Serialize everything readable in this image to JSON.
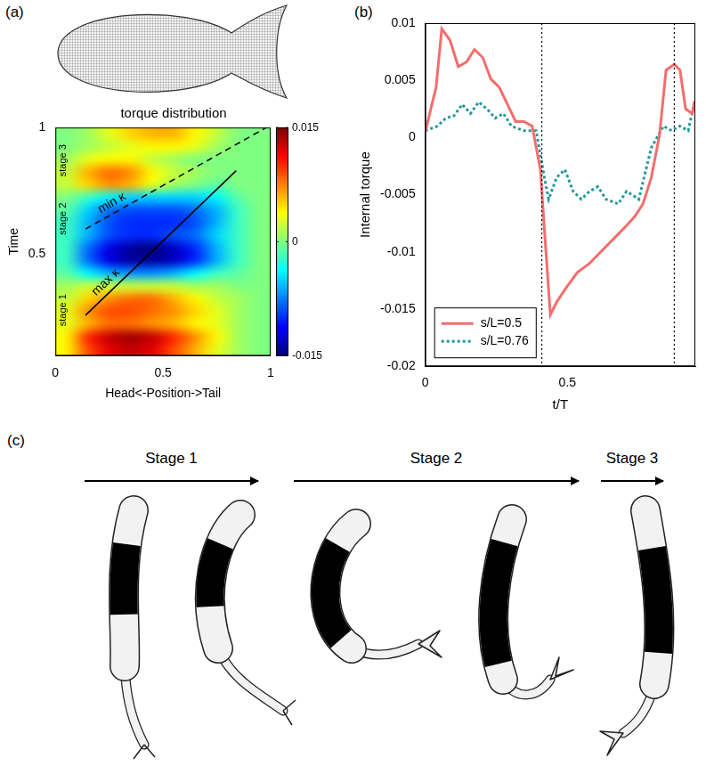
{
  "panel_labels": [
    "(a)",
    "(b)",
    "(c)"
  ],
  "chart_data": [
    {
      "type": "heatmap",
      "title": "torque distribution",
      "x_label": "Head<-Position->Tail",
      "y_label": "Time",
      "x": [
        0.05,
        0.15,
        0.25,
        0.35,
        0.45,
        0.55,
        0.65,
        0.75,
        0.85,
        0.95
      ],
      "y": [
        0.125,
        0.175,
        0.225,
        0.275,
        0.325,
        0.375,
        0.425,
        0.475,
        0.525,
        0.575,
        0.625,
        0.675,
        0.725,
        0.775,
        0.825,
        0.875,
        0.925,
        0.975
      ],
      "cells": [
        [
          0.004,
          0.009,
          0.012,
          0.013,
          0.012,
          0.009,
          0.006,
          0.003,
          0.001,
          0
        ],
        [
          0.004,
          0.01,
          0.013,
          0.014,
          0.013,
          0.01,
          0.007,
          0.004,
          0.001,
          0
        ],
        [
          0.003,
          0.006,
          0.008,
          0.008,
          0.007,
          0.006,
          0.004,
          0.003,
          0.001,
          0
        ],
        [
          0.003,
          0.007,
          0.009,
          0.009,
          0.008,
          0.007,
          0.005,
          0.003,
          0.001,
          0
        ],
        [
          0.002,
          0.005,
          0.007,
          0.008,
          0.008,
          0.006,
          0.004,
          0.002,
          0.001,
          0
        ],
        [
          0.001,
          0.002,
          0.002,
          0.002,
          0.002,
          0.002,
          0.001,
          0.001,
          0,
          0
        ],
        [
          -0.001,
          -0.004,
          -0.006,
          -0.007,
          -0.007,
          -0.006,
          -0.004,
          -0.002,
          -0.001,
          0
        ],
        [
          -0.002,
          -0.008,
          -0.012,
          -0.014,
          -0.014,
          -0.013,
          -0.01,
          -0.006,
          -0.002,
          0
        ],
        [
          -0.002,
          -0.008,
          -0.012,
          -0.014,
          -0.015,
          -0.013,
          -0.01,
          -0.006,
          -0.002,
          0
        ],
        [
          -0.002,
          -0.006,
          -0.009,
          -0.01,
          -0.01,
          -0.009,
          -0.008,
          -0.005,
          -0.002,
          0
        ],
        [
          -0.002,
          -0.006,
          -0.009,
          -0.01,
          -0.01,
          -0.01,
          -0.009,
          -0.006,
          -0.002,
          0
        ],
        [
          -0.001,
          -0.005,
          -0.008,
          -0.009,
          -0.009,
          -0.009,
          -0.008,
          -0.006,
          -0.002,
          0
        ],
        [
          0,
          -0.002,
          -0.004,
          -0.005,
          -0.005,
          -0.005,
          -0.005,
          -0.004,
          -0.001,
          0
        ],
        [
          0.002,
          0.005,
          0.007,
          0.006,
          0.003,
          0.001,
          0,
          -0.001,
          0,
          0
        ],
        [
          0.002,
          0.006,
          0.008,
          0.007,
          0.004,
          0.002,
          0.001,
          0,
          0,
          0
        ],
        [
          0.001,
          0.003,
          0.004,
          0.004,
          0.002,
          0.001,
          0,
          0,
          0,
          0
        ],
        [
          0,
          0.001,
          0.002,
          0.003,
          0.004,
          0.004,
          0.003,
          0.001,
          0,
          0
        ],
        [
          0,
          0.001,
          0.003,
          0.005,
          0.006,
          0.006,
          0.004,
          0.002,
          0,
          0
        ]
      ],
      "xlim": [
        0,
        1
      ],
      "xticks": [
        0,
        0.5,
        1
      ],
      "ylim": [
        0.1,
        1
      ],
      "yticks": [
        0.5,
        1
      ],
      "grid": false,
      "colorbar": {
        "range": [
          -0.015,
          0.015
        ],
        "ticks": [
          0.015,
          0,
          -0.015
        ]
      },
      "annotations": [
        {
          "text": "max κ",
          "line": [
            [
              0.14,
              0.26
            ],
            [
              0.84,
              0.83
            ]
          ],
          "line_style": "solid"
        },
        {
          "text": "min κ",
          "line": [
            [
              0.14,
              0.6
            ],
            [
              0.98,
              1.0
            ]
          ],
          "line_style": "dashed"
        }
      ],
      "stage_labels": [
        {
          "text": "stage 1",
          "y": 0.28
        },
        {
          "text": "stage 2",
          "y": 0.64
        },
        {
          "text": "stage 3",
          "y": 0.87
        }
      ]
    },
    {
      "type": "line",
      "x_label": "t/T",
      "y_label": "Internal torque",
      "xlim": [
        0,
        0.95
      ],
      "xticks": [
        0,
        0.5
      ],
      "ylim": [
        -0.02,
        0.01
      ],
      "yticks": [
        -0.02,
        -0.015,
        -0.01,
        -0.005,
        0,
        0.005,
        0.01
      ],
      "grid": false,
      "legend": "lower left",
      "vertical_lines": [
        0.41,
        0.876
      ],
      "series": [
        {
          "name": "s/L=0.5",
          "color": "#f46d6d",
          "line_style": "solid",
          "x": [
            0,
            0.038,
            0.058,
            0.087,
            0.116,
            0.145,
            0.173,
            0.202,
            0.231,
            0.26,
            0.289,
            0.318,
            0.347,
            0.376,
            0.405,
            0.419,
            0.44,
            0.462,
            0.491,
            0.535,
            0.578,
            0.621,
            0.665,
            0.708,
            0.737,
            0.766,
            0.795,
            0.824,
            0.847,
            0.876,
            0.896,
            0.916,
            0.939,
            0.948
          ],
          "values": [
            0.0005,
            0.0044,
            0.0095,
            0.0085,
            0.0062,
            0.0066,
            0.0077,
            0.007,
            0.0051,
            0.0044,
            0.0029,
            0.0014,
            0.0014,
            0.001,
            -0.0028,
            -0.008,
            -0.0155,
            -0.0144,
            -0.0133,
            -0.0118,
            -0.011,
            -0.0099,
            -0.0088,
            -0.0077,
            -0.0069,
            -0.0058,
            -0.0035,
            0.0002,
            0.0059,
            0.0064,
            0.0059,
            0.0025,
            0.0021,
            0.0032
          ]
        },
        {
          "name": "s/L=0.76",
          "color": "#20979b",
          "line_style": "dotted",
          "x": [
            0,
            0.043,
            0.072,
            0.101,
            0.13,
            0.159,
            0.188,
            0.217,
            0.246,
            0.275,
            0.303,
            0.347,
            0.39,
            0.419,
            0.434,
            0.462,
            0.491,
            0.52,
            0.549,
            0.578,
            0.607,
            0.636,
            0.679,
            0.708,
            0.751,
            0.795,
            0.838,
            0.867,
            0.896,
            0.925,
            0.948
          ],
          "values": [
            0.0006,
            0.001,
            0.0017,
            0.0019,
            0.0029,
            0.0021,
            0.0031,
            0.0025,
            0.0017,
            0.0021,
            0.001,
            0.0006,
            0.0006,
            -0.0035,
            -0.0054,
            -0.0035,
            -0.0028,
            -0.0047,
            -0.0054,
            -0.0047,
            -0.0043,
            -0.0054,
            -0.0058,
            -0.0047,
            -0.0054,
            -0.0009,
            0.001,
            0.0006,
            0.001,
            0.0006,
            0.0032
          ]
        }
      ]
    }
  ],
  "diagram": {
    "stage_labels": [
      "Stage 1",
      "Stage 2",
      "Stage 3"
    ]
  }
}
